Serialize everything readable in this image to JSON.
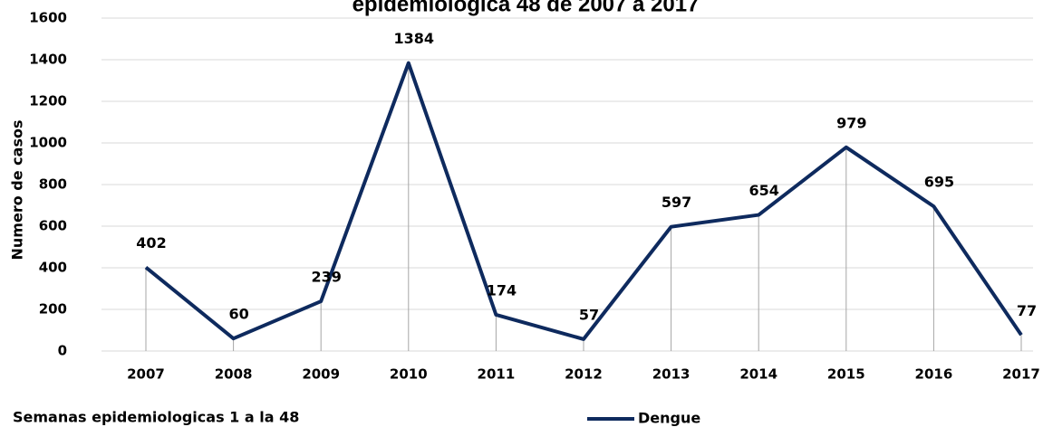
{
  "chart_data": {
    "type": "line",
    "title": "epidemiologica 48 de 2007 a 2017",
    "y_label": "Numero de casos",
    "x_label": "Semanas epidemiologicas 1 a la 48",
    "categories": [
      "2007",
      "2008",
      "2009",
      "2010",
      "2011",
      "2012",
      "2013",
      "2014",
      "2015",
      "2016",
      "2017"
    ],
    "series": [
      {
        "name": "Dengue",
        "color": "#0e2a5e",
        "values": [
          402,
          60,
          239,
          1384,
          174,
          57,
          597,
          654,
          979,
          695,
          77
        ]
      }
    ],
    "ylim": [
      0,
      1600
    ],
    "yticks": [
      0,
      200,
      400,
      600,
      800,
      1000,
      1200,
      1400,
      1600
    ],
    "grid": true,
    "drop_lines": true,
    "legend": "bottom"
  }
}
